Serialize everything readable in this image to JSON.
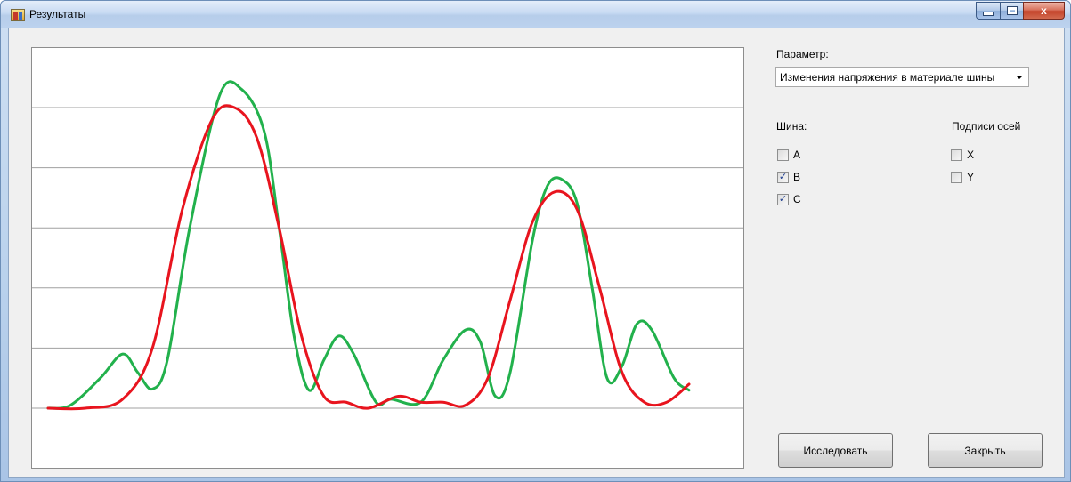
{
  "window": {
    "title": "Результаты"
  },
  "controls": {
    "minimize_icon": "minimize-icon",
    "maximize_icon": "maximize-icon",
    "close_glyph": "x"
  },
  "panel": {
    "parameter_label": "Параметр:",
    "parameter_value": "Изменения напряжения в материале шины",
    "bus_label": "Шина:",
    "axis_labels_label": "Подписи осей",
    "bus_options": [
      {
        "label": "A",
        "checked": false
      },
      {
        "label": "B",
        "checked": true
      },
      {
        "label": "C",
        "checked": true
      }
    ],
    "axis_options": [
      {
        "label": "X",
        "checked": false
      },
      {
        "label": "Y",
        "checked": false
      }
    ],
    "check_mark": "✓"
  },
  "buttons": {
    "investigate": "Исследовать",
    "close": "Закрыть"
  },
  "chart_data": {
    "type": "line",
    "grid": "horizontal",
    "ylim": [
      0,
      6
    ],
    "gridlines": [
      1,
      2,
      3,
      4,
      5
    ],
    "series": [
      {
        "color": "#22b14c",
        "points": [
          [
            0.0,
            0.0
          ],
          [
            0.3,
            0.05
          ],
          [
            0.7,
            0.5
          ],
          [
            1.0,
            0.9
          ],
          [
            1.2,
            0.6
          ],
          [
            1.4,
            0.32
          ],
          [
            1.6,
            0.8
          ],
          [
            1.9,
            3.0
          ],
          [
            2.3,
            5.2
          ],
          [
            2.6,
            5.3
          ],
          [
            2.9,
            4.6
          ],
          [
            3.1,
            3.0
          ],
          [
            3.3,
            1.2
          ],
          [
            3.5,
            0.3
          ],
          [
            3.7,
            0.8
          ],
          [
            3.9,
            1.2
          ],
          [
            4.1,
            0.9
          ],
          [
            4.4,
            0.1
          ],
          [
            4.6,
            0.15
          ],
          [
            5.0,
            0.1
          ],
          [
            5.3,
            0.8
          ],
          [
            5.6,
            1.3
          ],
          [
            5.8,
            1.1
          ],
          [
            6.0,
            0.2
          ],
          [
            6.2,
            0.6
          ],
          [
            6.5,
            2.8
          ],
          [
            6.7,
            3.7
          ],
          [
            6.9,
            3.8
          ],
          [
            7.1,
            3.4
          ],
          [
            7.3,
            2.0
          ],
          [
            7.5,
            0.5
          ],
          [
            7.7,
            0.7
          ],
          [
            7.9,
            1.4
          ],
          [
            8.1,
            1.3
          ],
          [
            8.4,
            0.5
          ],
          [
            8.6,
            0.3
          ]
        ]
      },
      {
        "color": "#e8141e",
        "points": [
          [
            0.0,
            0.0
          ],
          [
            0.5,
            0.0
          ],
          [
            1.0,
            0.15
          ],
          [
            1.4,
            1.0
          ],
          [
            1.8,
            3.3
          ],
          [
            2.2,
            4.8
          ],
          [
            2.5,
            5.0
          ],
          [
            2.8,
            4.5
          ],
          [
            3.1,
            3.0
          ],
          [
            3.4,
            1.2
          ],
          [
            3.7,
            0.2
          ],
          [
            4.0,
            0.1
          ],
          [
            4.3,
            0.0
          ],
          [
            4.7,
            0.2
          ],
          [
            5.0,
            0.1
          ],
          [
            5.3,
            0.1
          ],
          [
            5.6,
            0.05
          ],
          [
            5.9,
            0.5
          ],
          [
            6.2,
            1.8
          ],
          [
            6.5,
            3.1
          ],
          [
            6.8,
            3.6
          ],
          [
            7.1,
            3.3
          ],
          [
            7.4,
            2.0
          ],
          [
            7.7,
            0.6
          ],
          [
            8.0,
            0.1
          ],
          [
            8.3,
            0.1
          ],
          [
            8.6,
            0.4
          ]
        ]
      }
    ]
  }
}
